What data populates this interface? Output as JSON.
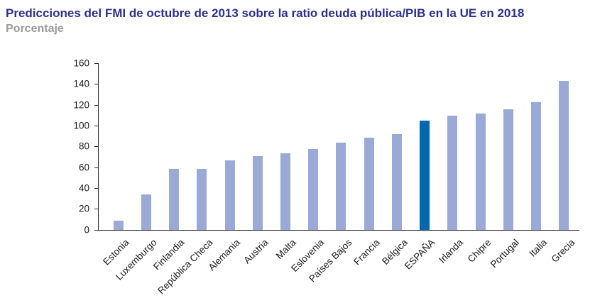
{
  "header": {
    "title": "Predicciones del FMI de octubre de 2013 sobre la ratio deuda pública/PIB en la UE en 2018",
    "subtitle": "Porcentaje"
  },
  "colors": {
    "title_blue": "#2b2f8e",
    "subtitle_gray": "#9b9b9b",
    "bar_light_blue": "#9ba9d6",
    "bar_highlight_blue": "#0068ae",
    "axis_black": "#2a2a2a"
  },
  "chart_data": {
    "type": "bar",
    "title": "Predicciones del FMI de octubre de 2013 sobre la ratio deuda pública/PIB en la UE en 2018",
    "subtitle": "Porcentaje",
    "xlabel": "",
    "ylabel": "Porcentaje",
    "categories": [
      "Estonia",
      "Luxemburgo",
      "Finlandia",
      "República Checa",
      "Alemania",
      "Austria",
      "Malta",
      "Eslovenia",
      "Países Bajos",
      "Francia",
      "Bélgica",
      "ESPAÑA",
      "Irlanda",
      "Chipre",
      "Portugal",
      "Italia",
      "Grecia"
    ],
    "values": [
      9,
      34,
      59,
      59,
      67,
      71,
      74,
      78,
      84,
      89,
      92,
      105,
      110,
      112,
      116,
      123,
      143
    ],
    "ylim": [
      0,
      160
    ],
    "ytick_step": 20,
    "ytick_labels": [
      "0",
      "20",
      "40",
      "60",
      "80",
      "100",
      "120",
      "140",
      "160"
    ],
    "highlight_category": "ESPAÑA",
    "bar_color": "#9ba9d6",
    "highlight_color": "#0068ae",
    "grid": false,
    "legend_position": "none"
  }
}
